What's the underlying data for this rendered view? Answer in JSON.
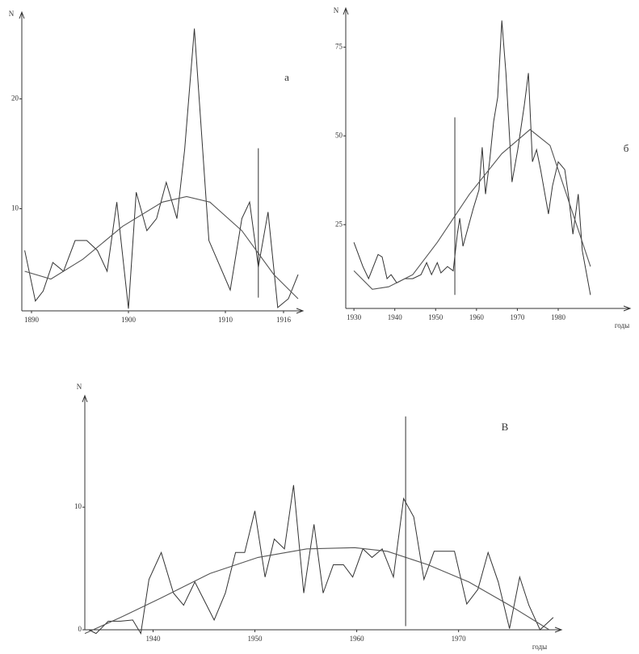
{
  "chart_data": [
    {
      "type": "line",
      "annotation": "a",
      "y_label": "N",
      "xlim": [
        1889,
        1918
      ],
      "ylim": [
        0.7,
        27.9
      ],
      "xticks": [
        1890,
        1900,
        1910,
        1916
      ],
      "yticks": [
        10,
        20
      ],
      "series": [
        {
          "color": "#333333",
          "x": [
            1889.3,
            1890.4,
            1891.2,
            1892.2,
            1893.3,
            1894.5,
            1895.7,
            1896.8,
            1897.8,
            1898.8,
            1900.0,
            1900.8,
            1901.9,
            1902.9,
            1903.9,
            1905.0,
            1905.8,
            1906.8,
            1908.3,
            1910.5,
            1911.7,
            1912.5,
            1913.4,
            1914.4,
            1915.4,
            1916.5,
            1917.5
          ],
          "values": [
            6.2,
            1.6,
            2.5,
            5.1,
            4.3,
            7.1,
            7.1,
            6.2,
            4.3,
            10.6,
            0.9,
            11.5,
            8.0,
            9.1,
            12.4,
            9.1,
            15.4,
            26.4,
            7.1,
            2.6,
            9.1,
            10.6,
            4.7,
            9.7,
            1.0,
            1.8,
            4.0
          ]
        },
        {
          "color": "#555555",
          "x": [
            1889.3,
            1892.0,
            1895.3,
            1899.4,
            1903.5,
            1906.0,
            1908.4,
            1911.7,
            1915.0,
            1917.5
          ],
          "values": [
            4.3,
            3.6,
            5.4,
            8.4,
            10.6,
            11.1,
            10.6,
            8.0,
            4.0,
            1.8
          ]
        }
      ],
      "vline": {
        "x": 1913.4,
        "y": [
          1.9,
          15.5
        ]
      }
    },
    {
      "type": "line",
      "annotation": "б",
      "y_label": "N",
      "x_label": "годы",
      "xlim": [
        1928,
        1997.6
      ],
      "ylim": [
        1.4,
        86
      ],
      "xticks": [
        1930,
        1940,
        1950,
        1960,
        1970,
        1980
      ],
      "yticks": [
        25,
        50,
        75
      ],
      "series": [
        {
          "color": "#333333",
          "x": [
            1930.0,
            1932.2,
            1933.6,
            1935.9,
            1936.9,
            1938.1,
            1939.1,
            1940.5,
            1942.5,
            1944.4,
            1946.4,
            1947.8,
            1949.0,
            1950.4,
            1951.3,
            1952.9,
            1954.3,
            1955.3,
            1955.9,
            1956.7,
            1959.2,
            1960.6,
            1961.4,
            1962.2,
            1963.2,
            1964.2,
            1965.2,
            1966.2,
            1967.2,
            1968.1,
            1968.7,
            1970.1,
            1971.7,
            1972.7,
            1973.7,
            1974.7,
            1975.7,
            1977.6,
            1978.6,
            1980.0,
            1981.6,
            1982.6,
            1983.6,
            1984.9,
            1985.9,
            1987.9
          ],
          "values": [
            20.0,
            13.2,
            9.8,
            16.6,
            15.9,
            9.8,
            10.9,
            8.6,
            9.8,
            9.8,
            10.9,
            14.3,
            10.9,
            14.3,
            11.4,
            13.2,
            12.0,
            22.3,
            26.8,
            18.9,
            29.5,
            34.8,
            46.8,
            33.6,
            42.7,
            54.1,
            60.9,
            82.5,
            67.7,
            49.5,
            37.0,
            46.1,
            58.6,
            67.7,
            42.7,
            46.1,
            40.5,
            28.0,
            35.9,
            42.7,
            40.5,
            32.5,
            22.3,
            33.6,
            17.7,
            5.2
          ]
        },
        {
          "color": "#555555",
          "x": [
            1930.0,
            1934.5,
            1938.5,
            1944.4,
            1950.4,
            1958.3,
            1966.2,
            1973.1,
            1978.0,
            1982.0,
            1987.9
          ],
          "values": [
            12.0,
            6.8,
            7.5,
            10.9,
            20.0,
            33.6,
            45.0,
            51.8,
            47.3,
            33.6,
            13.2
          ]
        }
      ],
      "vline": {
        "x": 1954.7,
        "y": [
          5.2,
          55.2
        ]
      }
    },
    {
      "type": "line",
      "annotation": "В",
      "y_label": "N",
      "x_label": "годы",
      "xlim": [
        1933.3,
        1980.1
      ],
      "ylim": [
        0,
        19.1
      ],
      "xticks": [
        1940,
        1950,
        1960,
        1970
      ],
      "yticks": [
        0,
        10
      ],
      "series": [
        {
          "color": "#333333",
          "x": [
            1933.7,
            1934.4,
            1935.6,
            1936.8,
            1938.0,
            1938.8,
            1939.6,
            1940.8,
            1942.0,
            1943.0,
            1944.1,
            1944.9,
            1946.0,
            1947.1,
            1948.1,
            1949.0,
            1950.0,
            1951.0,
            1951.9,
            1952.9,
            1953.8,
            1954.8,
            1955.8,
            1956.7,
            1957.7,
            1958.7,
            1959.6,
            1960.6,
            1961.5,
            1962.5,
            1963.6,
            1964.6,
            1965.6,
            1966.6,
            1967.6,
            1969.6,
            1970.8,
            1971.9,
            1972.9,
            1973.9,
            1975.0,
            1976.0,
            1976.9,
            1978.0,
            1979.3
          ],
          "values": [
            0,
            -0.3,
            0.7,
            0.7,
            0.8,
            -0.3,
            4.1,
            6.3,
            3.0,
            2.0,
            3.9,
            2.6,
            0.8,
            3.0,
            6.3,
            6.3,
            9.7,
            4.3,
            7.4,
            6.6,
            11.8,
            3.0,
            8.6,
            3.0,
            5.3,
            5.3,
            4.3,
            6.6,
            5.9,
            6.6,
            4.3,
            10.7,
            9.2,
            4.1,
            6.4,
            6.4,
            2.1,
            3.3,
            6.3,
            3.9,
            0.1,
            4.3,
            2.0,
            0,
            1.0
          ]
        },
        {
          "color": "#555555",
          "x": [
            1933.3,
            1936.8,
            1940.8,
            1945.6,
            1950.3,
            1955.1,
            1959.8,
            1963.0,
            1967.0,
            1971.0,
            1975.0,
            1978.9
          ],
          "values": [
            -0.3,
            1.0,
            2.6,
            4.6,
            5.9,
            6.6,
            6.7,
            6.4,
            5.3,
            3.9,
            2.0,
            0
          ]
        }
      ],
      "vline": {
        "x": 1964.8,
        "y": [
          0.3,
          17.4
        ]
      }
    }
  ]
}
